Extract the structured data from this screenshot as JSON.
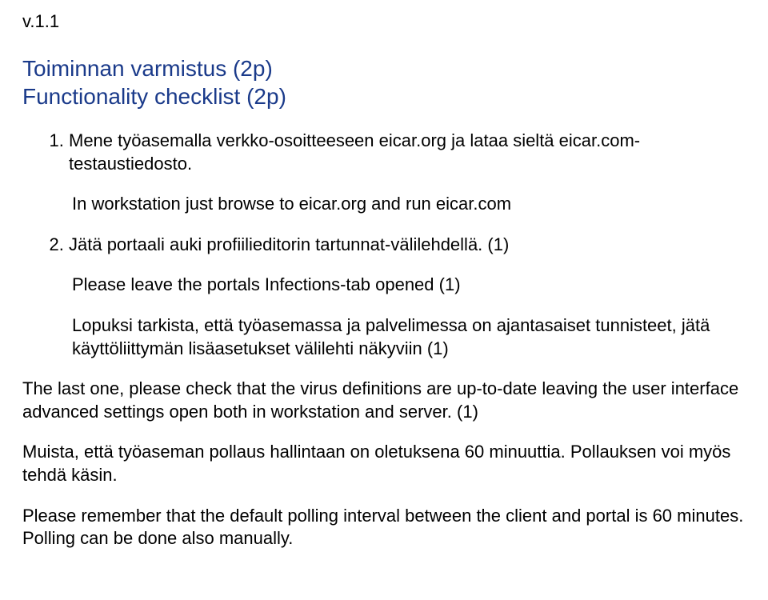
{
  "document": {
    "version": "v.1.1",
    "heading_line1": "Toiminnan varmistus (2p)",
    "heading_line2": "Functionality checklist (2p)",
    "colors": {
      "heading": "#1a3a8a",
      "body_text": "#000000",
      "background": "#ffffff"
    },
    "fonts": {
      "family": "Arial",
      "body_size_pt": 16,
      "heading_size_pt": 21
    },
    "item1_text": "Mene työasemalla verkko-osoitteeseen eicar.org ja lataa sieltä eicar.com-testaustiedosto.",
    "item1_sub": "In workstation just browse to eicar.org and run eicar.com",
    "item2_text": "Jätä portaali auki profiilieditorin tartunnat-välilehdellä. (1)",
    "item2_sub1": "Please leave the portals Infections-tab opened (1)",
    "item2_sub2": "Lopuksi tarkista, että työasemassa ja palvelimessa on ajantasaiset tunnisteet, jätä käyttöliittymän lisäasetukset välilehti näkyviin (1)",
    "para1": "The last one, please check that the virus definitions are up-to-date leaving the user interface advanced settings open both in workstation and server. (1)",
    "para2": "Muista, että työaseman pollaus hallintaan on oletuksena 60 minuuttia. Pollauksen voi myös tehdä käsin.",
    "para3": "Please remember that the default polling interval between the client and portal is 60 minutes. Polling can be done also manually."
  }
}
